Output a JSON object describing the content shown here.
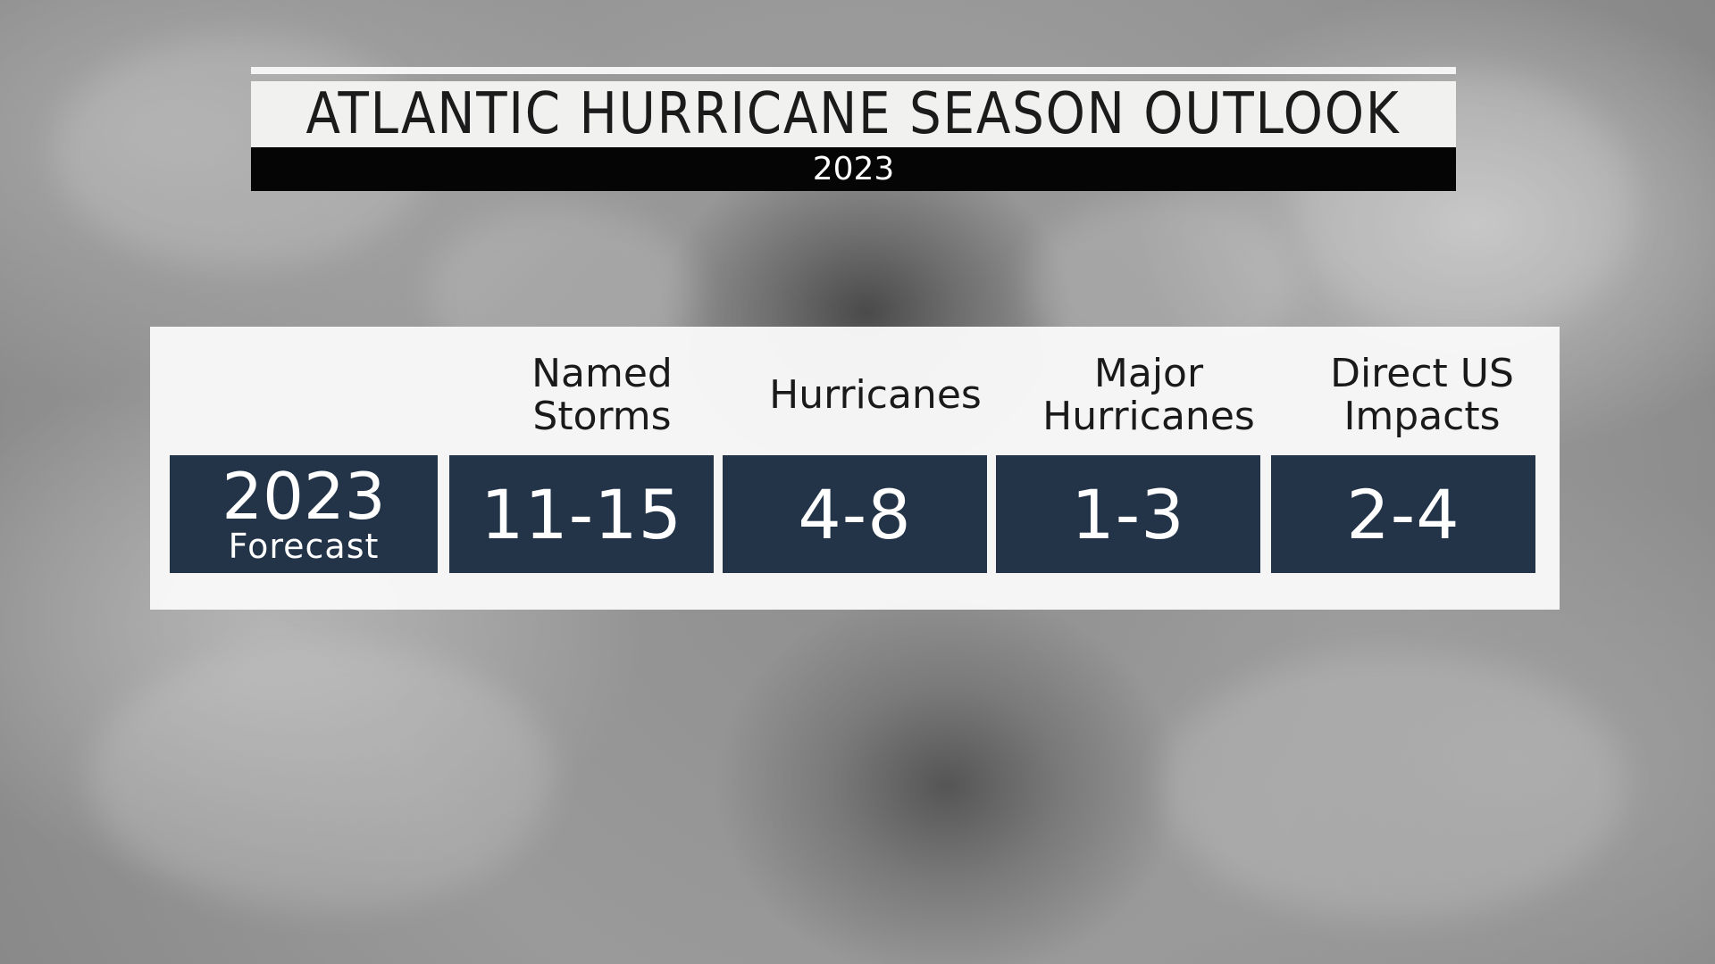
{
  "header": {
    "title": "ATLANTIC HURRICANE SEASON OUTLOOK",
    "subtitle": "2023"
  },
  "table": {
    "row_label": {
      "year": "2023",
      "label": "Forecast"
    },
    "columns": [
      {
        "header": "Named\nStorms",
        "value": "11-15"
      },
      {
        "header": "Hurricanes",
        "value": "4-8"
      },
      {
        "header": "Major\nHurricanes",
        "value": "1-3"
      },
      {
        "header": "Direct US\nImpacts",
        "value": "2-4"
      }
    ]
  },
  "colors": {
    "cell_background": "#233448",
    "panel_background": "#f8f8f8",
    "title_band": "#f1f1f0",
    "subtitle_band": "#050505"
  }
}
